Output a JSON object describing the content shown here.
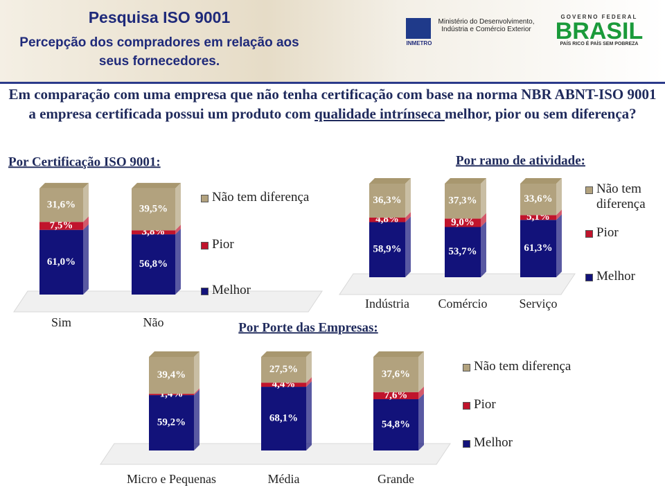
{
  "header": {
    "title": "Pesquisa ISO 9001",
    "subtitle": "Percepção dos compradores em relação aos seus fornecedores.",
    "inmetro": "INMETRO",
    "ministry": "Ministério do Desenvolvimento, Indústria e Comércio Exterior",
    "government": "GOVERNO FEDERAL",
    "brasil": "BRASIL",
    "slogan": "PAÍS RICO É PAÍS SEM POBREZA"
  },
  "question": {
    "before": "Em comparação com uma empresa que não tenha certificação com base na norma NBR ABNT-ISO 9001 a empresa certificada possui um produto com ",
    "underlined": "qualidade intrínseca ",
    "after": "melhor, pior ou sem diferença?"
  },
  "chart_data": [
    {
      "type": "stacked-bar",
      "title": "Por Certificação ISO 9001:",
      "categories": [
        "Sim",
        "Não"
      ],
      "ylim": [
        0,
        100
      ],
      "series": [
        {
          "name": "Melhor",
          "color": "#12127a",
          "values": [
            61.0,
            56.8
          ],
          "value_labels": [
            "61,0%",
            "56,8%"
          ]
        },
        {
          "name": "Pior",
          "color": "#c0142c",
          "values": [
            7.5,
            3.8
          ],
          "value_labels": [
            "7,5%",
            "3,8%"
          ]
        },
        {
          "name": "Não tem diferença",
          "color": "#b2a27e",
          "values": [
            31.6,
            39.5
          ],
          "value_labels": [
            "31,6%",
            "39,5%"
          ]
        }
      ]
    },
    {
      "type": "stacked-bar",
      "title": "Por ramo de atividade:",
      "categories": [
        "Indústria",
        "Comércio",
        "Serviço"
      ],
      "ylim": [
        0,
        100
      ],
      "series": [
        {
          "name": "Melhor",
          "color": "#12127a",
          "values": [
            58.9,
            53.7,
            61.3
          ],
          "value_labels": [
            "58,9%",
            "53,7%",
            "61,3%"
          ]
        },
        {
          "name": "Pior",
          "color": "#c0142c",
          "values": [
            4.8,
            9.0,
            5.1
          ],
          "value_labels": [
            "4,8%",
            "9,0%",
            "5,1%"
          ]
        },
        {
          "name": "Não tem diferença",
          "color": "#b2a27e",
          "values": [
            36.3,
            37.3,
            33.6
          ],
          "value_labels": [
            "36,3%",
            "37,3%",
            "33,6%"
          ]
        }
      ]
    },
    {
      "type": "stacked-bar",
      "title": "Por Porte das Empresas:",
      "categories": [
        "Micro e Pequenas",
        "Média",
        "Grande"
      ],
      "ylim": [
        0,
        100
      ],
      "series": [
        {
          "name": "Melhor",
          "color": "#12127a",
          "values": [
            59.2,
            68.1,
            54.8
          ],
          "value_labels": [
            "59,2%",
            "68,1%",
            "54,8%"
          ]
        },
        {
          "name": "Pior",
          "color": "#c0142c",
          "values": [
            1.4,
            4.4,
            7.6
          ],
          "value_labels": [
            "1,4%",
            "4,4%",
            "7,6%"
          ]
        },
        {
          "name": "Não tem diferença",
          "color": "#b2a27e",
          "values": [
            39.4,
            27.5,
            37.6
          ],
          "value_labels": [
            "39,4%",
            "27,5%",
            "37,6%"
          ]
        }
      ]
    }
  ]
}
